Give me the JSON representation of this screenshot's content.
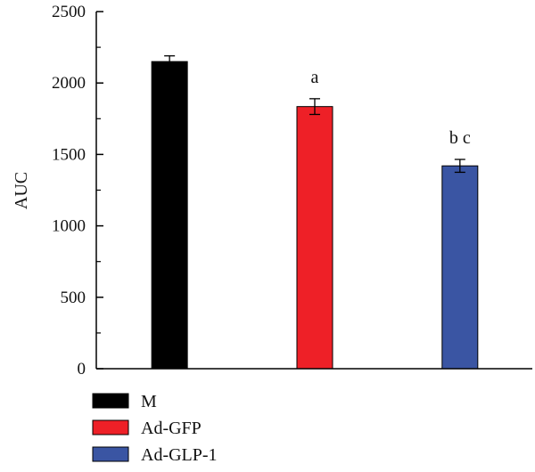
{
  "chart_data": {
    "type": "bar",
    "ylabel": "AUC",
    "xlabel": "",
    "ylim": [
      0,
      2500
    ],
    "yticks": [
      0,
      500,
      1000,
      1500,
      2000,
      2500
    ],
    "ytick_labels": [
      "0",
      "500",
      "1000",
      "1500",
      "2000",
      "2500"
    ],
    "grid": false,
    "legend_position": "bottom-left",
    "categories": [
      "M",
      "Ad-GFP",
      "Ad-GLP-1"
    ],
    "values": [
      2150,
      1835,
      1420
    ],
    "errors": [
      40,
      55,
      45
    ],
    "colors": [
      "#000000",
      "#ee2027",
      "#3a55a3"
    ],
    "annotations": [
      "",
      "a",
      "b c"
    ],
    "legend": [
      {
        "label": "M",
        "color": "#000000"
      },
      {
        "label": "Ad-GFP",
        "color": "#ee2027"
      },
      {
        "label": "Ad-GLP-1",
        "color": "#3a55a3"
      }
    ]
  }
}
